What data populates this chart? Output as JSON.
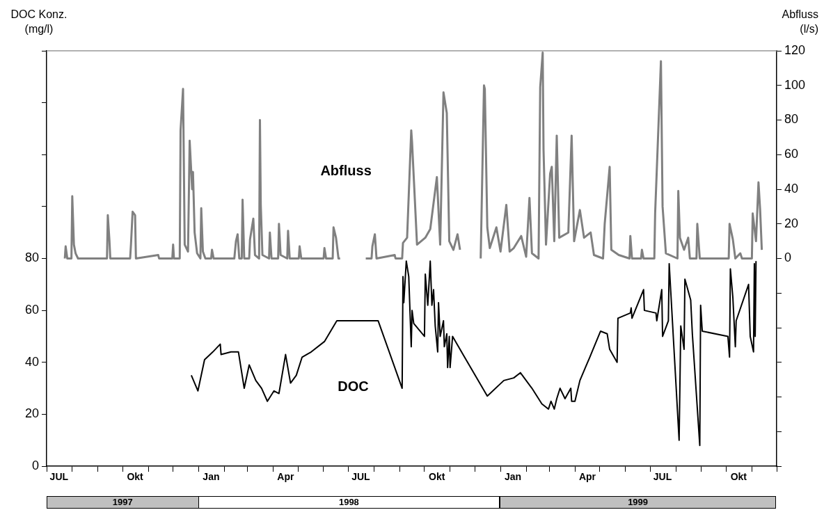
{
  "chart_data": {
    "type": "line",
    "ylabel": "DOC Konz. (mg/l)",
    "y2label": "Abfluss (l/s)",
    "annotations": [
      "1997",
      "1998",
      "1999"
    ],
    "legend": false,
    "grid": false,
    "xlim": [
      "1997-07-01",
      "1999-12-01"
    ],
    "xticks": [
      {
        "value": "1997-07-01",
        "label": null
      },
      {
        "value": "1997-07-16",
        "label": "JUL"
      },
      {
        "value": "1997-08-01",
        "label": null
      },
      {
        "value": "1997-09-01",
        "label": null
      },
      {
        "value": "1997-10-01",
        "label": null
      },
      {
        "value": "1997-10-16",
        "label": "Okt"
      },
      {
        "value": "1997-11-01",
        "label": null
      },
      {
        "value": "1997-12-01",
        "label": null
      },
      {
        "value": "1998-01-01",
        "label": null
      },
      {
        "value": "1998-01-16",
        "label": "Jan"
      },
      {
        "value": "1998-02-01",
        "label": null
      },
      {
        "value": "1998-03-01",
        "label": null
      },
      {
        "value": "1998-04-01",
        "label": null
      },
      {
        "value": "1998-04-16",
        "label": "Apr"
      },
      {
        "value": "1998-05-01",
        "label": null
      },
      {
        "value": "1998-06-01",
        "label": null
      },
      {
        "value": "1998-07-01",
        "label": null
      },
      {
        "value": "1998-07-16",
        "label": "JUL"
      },
      {
        "value": "1998-08-01",
        "label": null
      },
      {
        "value": "1998-09-01",
        "label": null
      },
      {
        "value": "1998-10-01",
        "label": null
      },
      {
        "value": "1998-10-16",
        "label": "Okt"
      },
      {
        "value": "1998-11-01",
        "label": null
      },
      {
        "value": "1998-12-01",
        "label": null
      },
      {
        "value": "1999-01-01",
        "label": null
      },
      {
        "value": "1999-01-16",
        "label": "Jan"
      },
      {
        "value": "1999-02-01",
        "label": null
      },
      {
        "value": "1999-03-01",
        "label": null
      },
      {
        "value": "1999-04-01",
        "label": null
      },
      {
        "value": "1999-04-16",
        "label": "Apr"
      },
      {
        "value": "1999-05-01",
        "label": null
      },
      {
        "value": "1999-06-01",
        "label": null
      },
      {
        "value": "1999-07-01",
        "label": null
      },
      {
        "value": "1999-07-16",
        "label": "JUL"
      },
      {
        "value": "1999-08-01",
        "label": null
      },
      {
        "value": "1999-09-01",
        "label": null
      },
      {
        "value": "1999-10-01",
        "label": null
      },
      {
        "value": "1999-10-16",
        "label": "Okt"
      },
      {
        "value": "1999-11-01",
        "label": null
      },
      {
        "value": "1999-12-01",
        "label": null
      }
    ],
    "ylim": [
      0,
      160
    ],
    "yticks": [
      0,
      20,
      40,
      60,
      80,
      {
        "value": 100,
        "label": null
      },
      {
        "value": 120,
        "label": null
      },
      {
        "value": 140,
        "label": null
      },
      {
        "value": 160,
        "label": null
      }
    ],
    "y2lim": [
      -120,
      120
    ],
    "y2ticks": [
      {
        "value": -120,
        "label": null
      },
      {
        "value": -100,
        "label": null
      },
      {
        "value": -80,
        "label": null
      },
      {
        "value": -60,
        "label": null
      },
      {
        "value": -40,
        "label": null
      },
      {
        "value": -20,
        "label": null
      },
      0,
      20,
      40,
      60,
      80,
      100,
      120
    ],
    "series": [
      {
        "name": "Abfluss",
        "color": "#808080",
        "axis": "y2",
        "x": [
          "1997-07-23",
          "1997-07-24",
          "1997-07-26",
          "1997-07-31",
          "1997-08-01",
          "1997-08-03",
          "1997-08-05",
          "1997-08-08",
          "1997-09-12",
          "1997-09-13",
          "1997-09-15",
          "1997-09-16",
          "1997-10-10",
          "1997-10-11",
          "1997-10-13",
          "1997-10-16",
          "1997-10-17",
          "1997-11-13",
          "1997-11-14",
          "1997-11-30",
          "1997-12-01",
          "1997-12-02",
          "1997-12-09",
          "1997-12-10",
          "1997-12-13",
          "1997-12-15",
          "1997-12-19",
          "1997-12-21",
          "1997-12-24",
          "1997-12-25",
          "1997-12-27",
          "1997-12-30",
          "1998-01-03",
          "1998-01-04",
          "1998-01-06",
          "1998-01-09",
          "1998-01-16",
          "1998-01-17",
          "1998-01-19",
          "1998-02-13",
          "1998-02-15",
          "1998-02-17",
          "1998-02-19",
          "1998-02-22",
          "1998-02-23",
          "1998-02-25",
          "1998-03-03",
          "1998-03-04",
          "1998-03-08",
          "1998-03-10",
          "1998-03-15",
          "1998-03-16",
          "1998-03-17",
          "1998-03-19",
          "1998-03-27",
          "1998-03-28",
          "1998-03-30",
          "1998-04-07",
          "1998-04-08",
          "1998-04-10",
          "1998-04-18",
          "1998-04-19",
          "1998-04-21",
          "1998-05-02",
          "1998-05-03",
          "1998-05-05",
          "1998-06-01",
          "1998-06-02",
          "1998-06-04",
          "1998-06-12",
          "1998-06-13",
          "1998-06-16",
          "1998-06-19",
          "1998-06-21",
          "1998-07-05",
          "1998-07-22",
          "1998-07-29",
          "1998-07-30",
          "1998-08-02",
          "1998-08-04",
          "1998-08-26",
          "1998-08-27",
          "1998-09-04",
          "1998-09-05",
          "1998-09-10",
          "1998-09-15",
          "1998-09-16",
          "1998-09-22",
          "1998-10-02",
          "1998-10-08",
          "1998-10-16",
          "1998-10-20",
          "1998-10-24",
          "1998-10-28",
          "1998-10-31",
          "1998-11-05",
          "1998-11-10",
          "1998-11-13",
          "1998-11-25",
          "1998-12-08",
          "1998-12-12",
          "1998-12-13",
          "1998-12-16",
          "1998-12-19",
          "1998-12-27",
          "1999-01-01",
          "1999-01-08",
          "1999-01-12",
          "1999-01-17",
          "1999-01-26",
          "1999-02-01",
          "1999-02-05",
          "1999-02-08",
          "1999-02-16",
          "1999-02-18",
          "1999-02-21",
          "1999-02-22",
          "1999-02-25",
          "1999-03-02",
          "1999-03-04",
          "1999-03-07",
          "1999-03-10",
          "1999-03-13",
          "1999-03-24",
          "1999-03-28",
          "1999-03-31",
          "1999-04-07",
          "1999-04-12",
          "1999-04-20",
          "1999-04-24",
          "1999-05-05",
          "1999-05-07",
          "1999-05-13",
          "1999-05-15",
          "1999-05-24",
          "1999-06-06",
          "1999-06-07",
          "1999-06-09",
          "1999-06-20",
          "1999-06-21",
          "1999-06-23",
          "1999-07-06",
          "1999-07-07",
          "1999-07-14",
          "1999-07-16",
          "1999-07-20",
          "1999-08-03",
          "1999-08-04",
          "1999-08-06",
          "1999-08-11",
          "1999-08-16",
          "1999-08-18",
          "1999-08-26",
          "1999-08-27",
          "1999-08-30",
          "1999-10-04",
          "1999-10-05",
          "1999-10-09",
          "1999-10-12",
          "1999-10-18",
          "1999-10-20",
          "1999-11-01",
          "1999-11-02",
          "1999-11-06",
          "1999-11-09",
          "1999-11-11",
          "1999-11-13"
        ],
        "values": [
          0,
          7,
          0,
          0,
          36,
          8,
          3,
          0,
          0,
          25,
          10,
          0,
          0,
          8,
          27,
          25,
          0,
          2,
          0,
          0,
          8,
          0,
          0,
          74,
          98,
          8,
          4,
          68,
          40,
          50,
          15,
          3,
          0,
          29,
          4,
          0,
          0,
          5,
          0,
          0,
          10,
          14,
          0,
          0,
          34,
          0,
          0,
          11,
          23,
          2,
          0,
          80,
          31,
          2,
          0,
          15,
          0,
          0,
          20,
          2,
          0,
          16,
          0,
          0,
          7,
          0,
          0,
          6,
          0,
          0,
          18,
          12,
          0,
          0,
          null,
          0,
          0,
          7,
          14,
          0,
          2,
          0,
          0,
          9,
          12,
          74,
          67,
          8,
          12,
          17,
          47,
          8,
          96,
          84,
          10,
          5,
          14,
          5,
          null,
          0,
          100,
          98,
          18,
          6,
          18,
          4,
          31,
          4,
          6,
          13,
          1,
          35,
          3,
          0,
          99,
          119,
          63,
          8,
          49,
          53,
          10,
          71,
          12,
          15,
          71,
          10,
          28,
          12,
          15,
          2,
          0,
          20,
          53,
          5,
          2,
          0,
          13,
          0,
          0,
          5,
          0,
          0,
          26,
          114,
          30,
          3,
          0,
          39,
          12,
          5,
          12,
          0,
          0,
          20,
          0,
          0,
          20,
          11,
          0,
          3,
          0,
          0,
          26,
          10,
          44,
          28,
          5
        ]
      },
      {
        "name": "DOC",
        "color": "#000000",
        "x": [
          "1997-12-23",
          "1997-12-31",
          "1998-01-08",
          "1998-01-18",
          "1998-01-27",
          "1998-01-28",
          "1998-02-09",
          "1998-02-18",
          "1998-02-25",
          "1998-03-03",
          "1998-03-11",
          "1998-03-18",
          "1998-03-25",
          "1998-04-02",
          "1998-04-08",
          "1998-04-16",
          "1998-04-22",
          "1998-04-29",
          "1998-05-06",
          "1998-05-17",
          "1998-06-02",
          "1998-06-17",
          "1998-08-06",
          "1998-09-04",
          "1998-09-05",
          "1998-09-06",
          "1998-09-09",
          "1998-09-12",
          "1998-09-15",
          "1998-09-16",
          "1998-09-18",
          "1998-10-01",
          "1998-10-02",
          "1998-10-05",
          "1998-10-08",
          "1998-10-10",
          "1998-10-12",
          "1998-10-14",
          "1998-10-17",
          "1998-10-18",
          "1998-10-20",
          "1998-10-24",
          "1998-10-25",
          "1998-10-28",
          "1998-10-29",
          "1998-10-31",
          "1998-11-01",
          "1998-11-04",
          "1998-11-13",
          "1998-12-16",
          "1999-01-05",
          "1999-01-17",
          "1999-01-25",
          "1999-02-08",
          "1999-02-20",
          "1999-02-28",
          "1999-03-03",
          "1999-03-07",
          "1999-03-10",
          "1999-03-14",
          "1999-03-20",
          "1999-03-27",
          "1999-03-28",
          "1999-04-01",
          "1999-04-07",
          "1999-04-15",
          "1999-04-19",
          "1999-05-02",
          "1999-05-10",
          "1999-05-13",
          "1999-05-22",
          "1999-05-23",
          "1999-06-07",
          "1999-06-08",
          "1999-06-09",
          "1999-06-23",
          "1999-06-24",
          "1999-07-08",
          "1999-07-09",
          "1999-07-15",
          "1999-07-16",
          "1999-07-23",
          "1999-07-24",
          "1999-08-05",
          "1999-08-07",
          "1999-08-11",
          "1999-08-12",
          "1999-08-19",
          "1999-08-21",
          "1999-08-30",
          "1999-08-31",
          "1999-09-02",
          "1999-10-03",
          "1999-10-05",
          "1999-10-06",
          "1999-10-09",
          "1999-10-12",
          "1999-10-13",
          "1999-10-28",
          "1999-10-30",
          "1999-11-03",
          "1999-11-04",
          "1999-11-05",
          "1999-11-06"
        ],
        "values": [
          35,
          29,
          41,
          44,
          47,
          43,
          44,
          44,
          30,
          39,
          33,
          30,
          25,
          29,
          28,
          43,
          32,
          35,
          42,
          44,
          48,
          56,
          56,
          30,
          73,
          63,
          79,
          73,
          46,
          60,
          55,
          50,
          74,
          62,
          79,
          62,
          68,
          54,
          44,
          63,
          50,
          56,
          46,
          51,
          38,
          50,
          38,
          50,
          45,
          27,
          33,
          34,
          36,
          30,
          24,
          22,
          25,
          22,
          26,
          30,
          26,
          30,
          25,
          25,
          33,
          39,
          42,
          52,
          51,
          45,
          40,
          57,
          59,
          61,
          57,
          68,
          60,
          59,
          56,
          68,
          50,
          56,
          78,
          10,
          54,
          45,
          72,
          64,
          51,
          8,
          62,
          52,
          50,
          42,
          76,
          65,
          46,
          56,
          70,
          50,
          44,
          78,
          50,
          79
        ]
      }
    ]
  }
}
